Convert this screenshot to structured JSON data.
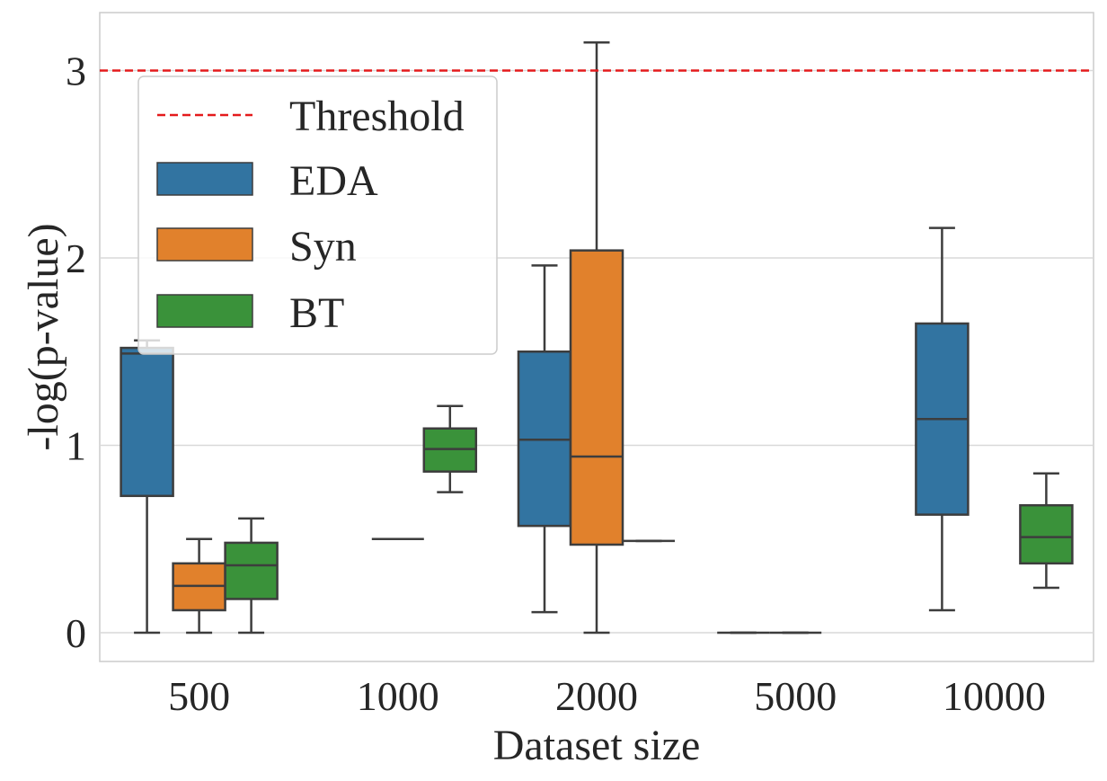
{
  "chart_data": {
    "type": "box",
    "xlabel": "Dataset size",
    "ylabel": "-log(p-value)",
    "categories": [
      "500",
      "1000",
      "2000",
      "5000",
      "10000"
    ],
    "ylim": [
      -0.15,
      3.3
    ],
    "yticks": [
      0,
      1,
      2,
      3
    ],
    "ytick_labels": [
      "0",
      "1",
      "2",
      "3"
    ],
    "grid": true,
    "threshold": {
      "name": "Threshold",
      "value": 3.0,
      "color": "#e41a1c",
      "style": "dashed"
    },
    "legend": {
      "position": "upper-left",
      "entries": [
        "Threshold",
        "EDA",
        "Syn",
        "BT"
      ]
    },
    "series": [
      {
        "name": "EDA",
        "color": "#3274a1",
        "boxes": [
          {
            "category": "500",
            "whisker_low": 0.0,
            "q1": 0.73,
            "median": 1.49,
            "q3": 1.52,
            "whisker_high": 1.56
          },
          null,
          {
            "category": "2000",
            "whisker_low": 0.11,
            "q1": 0.57,
            "median": 1.03,
            "q3": 1.5,
            "whisker_high": 1.96
          },
          {
            "category": "5000",
            "whisker_low": 0.0,
            "q1": 0.0,
            "median": 0.0,
            "q3": 0.0,
            "whisker_high": 0.0
          },
          {
            "category": "10000",
            "whisker_low": 0.12,
            "q1": 0.63,
            "median": 1.14,
            "q3": 1.65,
            "whisker_high": 2.16
          }
        ]
      },
      {
        "name": "Syn",
        "color": "#e1812c",
        "boxes": [
          {
            "category": "500",
            "whisker_low": 0.0,
            "q1": 0.12,
            "median": 0.25,
            "q3": 0.37,
            "whisker_high": 0.5
          },
          {
            "category": "1000",
            "whisker_low": 0.5,
            "q1": 0.5,
            "median": 0.5,
            "q3": 0.5,
            "whisker_high": 0.5
          },
          {
            "category": "2000",
            "whisker_low": 0.0,
            "q1": 0.47,
            "median": 0.94,
            "q3": 2.04,
            "whisker_high": 3.15
          },
          {
            "category": "5000",
            "whisker_low": 0.0,
            "q1": 0.0,
            "median": 0.0,
            "q3": 0.0,
            "whisker_high": 0.0
          },
          null
        ]
      },
      {
        "name": "BT",
        "color": "#3a923a",
        "boxes": [
          {
            "category": "500",
            "whisker_low": 0.0,
            "q1": 0.18,
            "median": 0.36,
            "q3": 0.48,
            "whisker_high": 0.61
          },
          {
            "category": "1000",
            "whisker_low": 0.75,
            "q1": 0.86,
            "median": 0.98,
            "q3": 1.09,
            "whisker_high": 1.21
          },
          {
            "category": "2000",
            "whisker_low": 0.49,
            "q1": 0.49,
            "median": 0.49,
            "q3": 0.49,
            "whisker_high": 0.49
          },
          null,
          {
            "category": "10000",
            "whisker_low": 0.24,
            "q1": 0.37,
            "median": 0.51,
            "q3": 0.68,
            "whisker_high": 0.85
          }
        ]
      }
    ]
  }
}
